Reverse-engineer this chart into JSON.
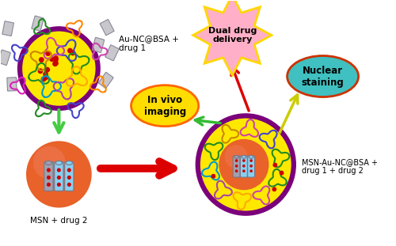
{
  "bg_color": "#ffffff",
  "labels": {
    "au_nc_bsa": "Au-NC@BSA +\ndrug 1",
    "msn_drug2": "MSN + drug 2",
    "msn_combined": "MSN-Au-NC@BSA +\ndrug 1 + drug 2",
    "in_vivo": "In vivo\nimaging",
    "dual_drug": "Dual drug\ndelivery",
    "nuclear": "Nuclear\nstaining"
  },
  "colors": {
    "yellow_bg": "#FFE800",
    "purple_border": "#7B007B",
    "orange_sphere": "#E8622A",
    "light_blue_msn": "#89CFF0",
    "gray_msn": "#A0A0B0",
    "red_dots": "#CC0000",
    "green_arrow": "#44CC44",
    "red_arrow": "#DD0000",
    "yellow_arrow": "#CCCC00",
    "in_vivo_fill": "#FFDD00",
    "in_vivo_border": "#FF6600",
    "dual_fill": "#FFB0C8",
    "dual_border": "#FFD700",
    "nuclear_fill": "#40C0C0",
    "nuclear_border": "#CC3300",
    "rect_gray": "#C0C0C8",
    "protein_green": "#228B22",
    "protein_blue": "#4444CC",
    "protein_pink": "#CC44AA",
    "protein_magenta": "#DD22BB",
    "protein_orange": "#FF8800"
  }
}
